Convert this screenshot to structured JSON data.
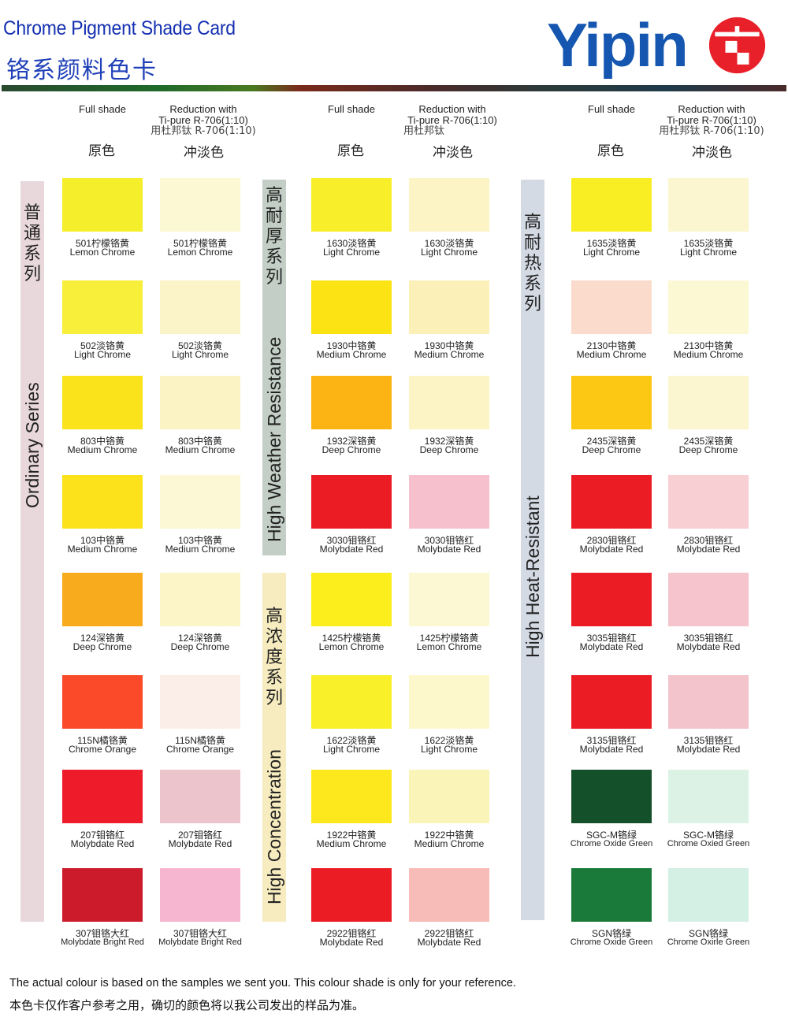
{
  "header": {
    "title_en": "Chrome Pigment Shade Card",
    "title_cn": "铬系颜料色卡",
    "logo_text": "Yipin",
    "logo_colors": {
      "text": "#1456b0",
      "mark": "#e8202a"
    }
  },
  "column_headers": [
    {
      "full_en": "Full shade",
      "full_cn": "原色",
      "red_en1": "Reduction with",
      "red_en2": "Ti-pure R-706(1:10)",
      "red_cn_sub": "用杜邦钛 R-706(1:10)",
      "red_cn": "冲淡色"
    },
    {
      "full_en": "Full shade",
      "full_cn": "原色",
      "red_en1": "Reduction with",
      "red_en2": "Ti-pure R-706(1:10)",
      "red_cn_sub": "用杜邦钛",
      "red_cn": "冲淡色"
    },
    {
      "full_en": "Full shade",
      "full_cn": "原色",
      "red_en1": "Reduction with",
      "red_en2": "Ti-pure R-706(1:10)",
      "red_cn_sub": "用杜邦钛 R-706(1:10)",
      "red_cn": "冲淡色"
    }
  ],
  "series": [
    {
      "en": "Ordinary Series",
      "cn": "普通系列",
      "color": "#e8d8dc"
    },
    {
      "en": "High Weather Resistance",
      "cn": "高耐厚系列",
      "color": "#c2cec6"
    },
    {
      "en": "High Concentration",
      "cn": "高浓度系列",
      "color": "#f6ecc0"
    },
    {
      "en": "High Heat-Resistant",
      "cn": "高耐热系列",
      "color": "#d4dae4"
    }
  ],
  "groups": [
    {
      "items": [
        {
          "code": "501柠檬铬黄",
          "name": "Lemon Chrome",
          "name2": "Lemon Chrome",
          "full": "#f5ee2a",
          "reduced": "#fcf8d4"
        },
        {
          "code": "502淡铬黄",
          "name": "Light Chrome",
          "name2": "Light Chrome",
          "full": "#f7ef3a",
          "reduced": "#fbf4c8"
        },
        {
          "code": "803中铬黄",
          "name": "Medium Chrome",
          "name2": "Medium Chrome",
          "full": "#fbe31c",
          "reduced": "#fbf3c4"
        },
        {
          "code": "103中铬黄",
          "name": "Medium Chrome",
          "name2": "Medium Chrome",
          "full": "#fbe21a",
          "reduced": "#fcf7d4"
        },
        {
          "code": "124深铬黄",
          "name": "Deep Chrome",
          "name2": "Deep Chrome",
          "full": "#f8ab1c",
          "reduced": "#fcf5c8"
        },
        {
          "code": "115N橘铬黄",
          "name": "Chrome Orange",
          "name2": "Chrome Orange",
          "full": "#fb4a2a",
          "reduced": "#fbeee8"
        },
        {
          "code": "207钼铬红",
          "name": "Molybdate Red",
          "name2": "Molybdate Red",
          "full": "#ee1c2a",
          "reduced": "#ecc4cc"
        },
        {
          "code": "307钼铬大红",
          "name": "Molybdate Bright Red",
          "name2": "Molybdate Bright Red",
          "full": "#cc1c2c",
          "reduced": "#f6b6d0"
        }
      ]
    },
    {
      "items": [
        {
          "code": "1630淡铬黄",
          "name": "Light Chrome",
          "name2": "Light Chrome",
          "full": "#f9ee2a",
          "reduced": "#fcf4c4"
        },
        {
          "code": "1930中铬黄",
          "name": "Medium Chrome",
          "name2": "Medium Chrome",
          "full": "#fce314",
          "reduced": "#fbf0b8"
        },
        {
          "code": "1932深铬黄",
          "name": "Deep Chrome",
          "name2": "Deep Chrome",
          "full": "#fcb414",
          "reduced": "#fcf4c4"
        },
        {
          "code": "3030钼铬红",
          "name": "Molybdate Red",
          "name2": "Molybdate Red",
          "full": "#ec1c24",
          "reduced": "#f6c0cc"
        },
        {
          "code": "1425柠檬铬黄",
          "name": "Lemon Chrome",
          "name2": "Lemon Chrome",
          "full": "#fcee1c",
          "reduced": "#fcf8d4"
        },
        {
          "code": "1622淡铬黄",
          "name": "Light Chrome",
          "name2": "Light Chrome",
          "full": "#faf02a",
          "reduced": "#fcf8cc"
        },
        {
          "code": "1922中铬黄",
          "name": "Medium Chrome",
          "name2": "Medium Chrome",
          "full": "#fce81c",
          "reduced": "#fbf4b8"
        },
        {
          "code": "2922钼铬红",
          "name": "Molybdate Red",
          "name2": "Molybdate Red",
          "full": "#ec1c24",
          "reduced": "#f8bcb8"
        }
      ]
    },
    {
      "items": [
        {
          "code": "1635淡铬黄",
          "name": "Light Chrome",
          "name2": "Light Chrome",
          "full": "#f9ee24",
          "reduced": "#fcf6d0"
        },
        {
          "code": "2130中铬黄",
          "name": "Medium Chrome",
          "name2": "Medium Chrome",
          "full": "#fbdccc",
          "reduced": "#fcf8d4"
        },
        {
          "code": "2435深铬黄",
          "name": "Deep Chrome",
          "name2": "Deep Chrome",
          "full": "#fcc814",
          "reduced": "#fcf6d0"
        },
        {
          "code": "2830钼铬红",
          "name": "Molybdate Red",
          "name2": "Molybdate Red",
          "full": "#ec1c24",
          "reduced": "#f8d0d4"
        },
        {
          "code": "3035钼铬红",
          "name": "Molybdate Red",
          "name2": "Molybdate Red",
          "full": "#ec1c24",
          "reduced": "#f6c4cc"
        },
        {
          "code": "3135钼铬红",
          "name": "Molybdate Red",
          "name2": "Molybdate Red",
          "full": "#ec1c24",
          "reduced": "#f4c4cc"
        },
        {
          "code": "SGC-M铬绿",
          "name": "Chrome Oxide Green",
          "name2": "Chrome Oxied Green",
          "full": "#14502a",
          "reduced": "#dcf2e4"
        },
        {
          "code": "SGN铬绿",
          "name": "Chrome Oxide Green",
          "name2": "Chrome Oxirle Green",
          "full": "#1a7a3a",
          "reduced": "#d4f0e4"
        }
      ]
    }
  ],
  "footer": {
    "en": "The actual colour is based on the samples we sent you. This colour shade is only for your reference.",
    "cn": "本色卡仅作客户参考之用，确切的颜色将以我公司发出的样品为准。"
  }
}
